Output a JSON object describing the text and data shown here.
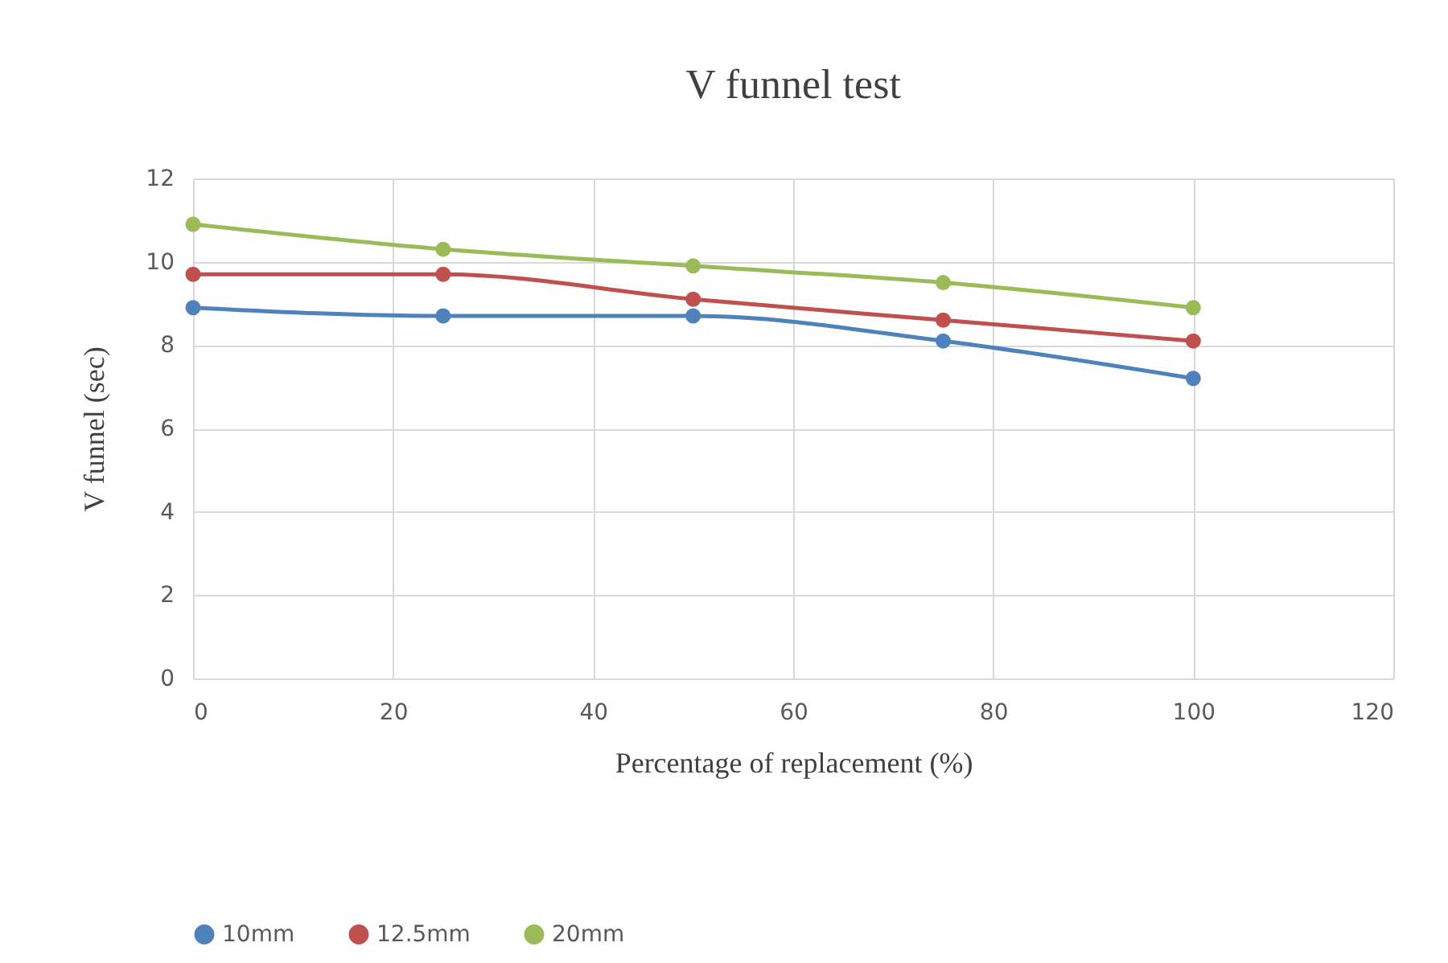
{
  "chart_data": {
    "type": "line",
    "title": "V funnel test",
    "xlabel": "Percentage of replacement (%)",
    "ylabel": "V funnel (sec)",
    "x": [
      0,
      25,
      50,
      75,
      100
    ],
    "series": [
      {
        "name": "10mm",
        "color": "#4f81bd",
        "values": [
          8.9,
          8.7,
          8.7,
          8.1,
          7.2
        ]
      },
      {
        "name": "12.5mm",
        "color": "#c0504d",
        "values": [
          9.7,
          9.7,
          9.1,
          8.6,
          8.1
        ]
      },
      {
        "name": "20mm",
        "color": "#9bbb59",
        "values": [
          10.9,
          10.3,
          9.9,
          9.5,
          8.9
        ]
      }
    ],
    "xlim": [
      0,
      120
    ],
    "xticks": [
      0,
      20,
      40,
      60,
      80,
      100,
      120
    ],
    "ylim": [
      0,
      12
    ],
    "yticks": [
      0,
      2,
      4,
      6,
      8,
      10,
      12
    ],
    "grid": true,
    "legend": "bottom",
    "marker": "circle"
  }
}
